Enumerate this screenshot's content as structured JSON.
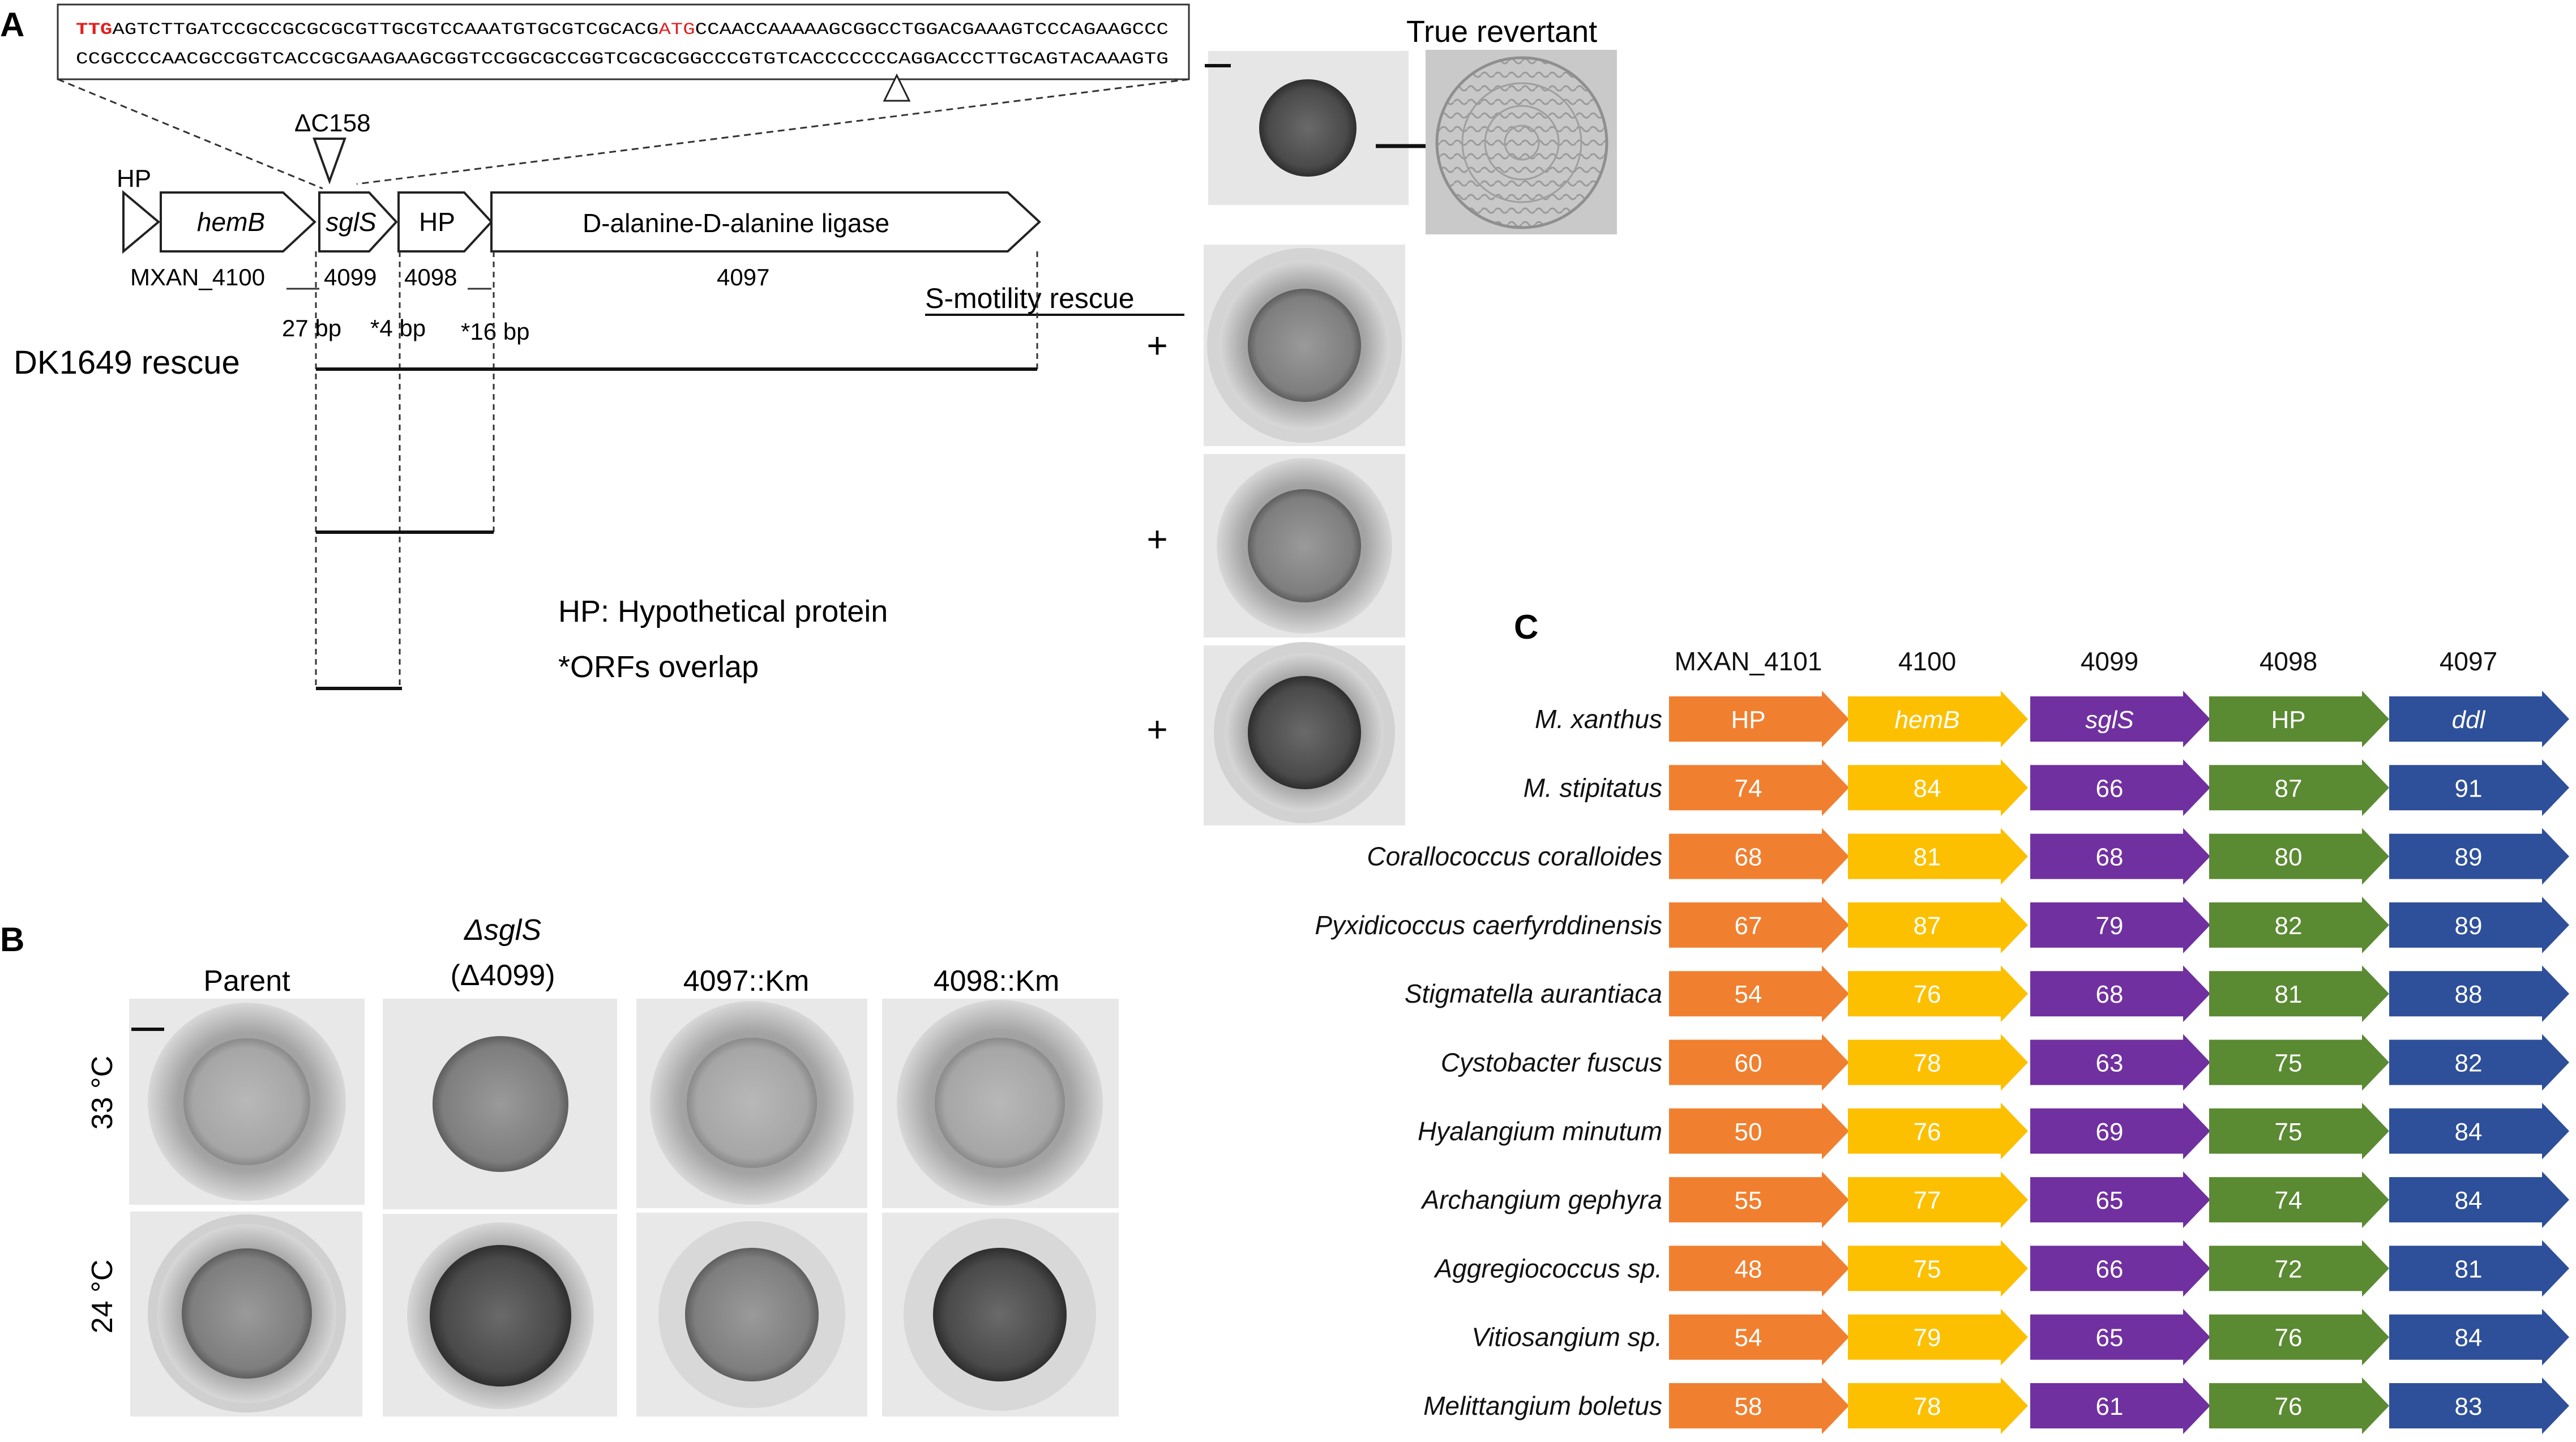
{
  "panel_a": {
    "letter": "A",
    "sequence": {
      "line1_start": "TTG",
      "line1_mid": "AGTCTTGATCCGCCGCGCGCGTTGCGTCCAAATGTGCGTCGCACG",
      "line1_atg": "ATG",
      "line1_end": "CCAACCAAAAAGCGGCCTGGACGAAAGTCCCAGAAGCCC",
      "line2": "CCGCCCCAACGCCGGTCACCGCGAAGAAGCGGTCCGGCGCCGGTCGCGCGGCCCGTGTCACCCCCCCAGGACCCTTGCAGTACAAAGTG"
    },
    "deletion_label": "ΔC158",
    "hp_top_label": "HP",
    "genes": [
      {
        "label": "hemB",
        "italic": true
      },
      {
        "label": "sglS",
        "italic": true
      },
      {
        "label": "HP",
        "italic": false
      },
      {
        "label": "D-alanine-D-alanine ligase",
        "italic": false
      }
    ],
    "gene_numbers": [
      "MXAN_4100",
      "4099",
      "4098",
      "4097"
    ],
    "spacers": [
      "27 bp",
      "*4 bp",
      "*16 bp"
    ],
    "smotility_label": "S-motility rescue",
    "dk_label": "DK1649 rescue",
    "plus_signs": [
      "+",
      "+",
      "+"
    ],
    "legend": [
      "HP: Hypothetical protein",
      "*ORFs overlap"
    ],
    "true_revertant": "True revertant"
  },
  "panel_b": {
    "letter": "B",
    "columns": [
      {
        "line1": "Parent",
        "line2": ""
      },
      {
        "line1": "ΔsglS",
        "line2": "(Δ4099)"
      },
      {
        "line1": "4097::Km",
        "line2": ""
      },
      {
        "line1": "4098::Km",
        "line2": ""
      }
    ],
    "rows": [
      "33 °C",
      "24 °C"
    ]
  },
  "panel_c": {
    "letter": "C",
    "column_headers": [
      "MXAN_4101",
      "4100",
      "4099",
      "4098",
      "4097"
    ],
    "column_colors": [
      "#f08030",
      "#fcc000",
      "#7030a0",
      "#5a8a32",
      "#2e4f99"
    ],
    "species": [
      {
        "name": "M. xanthus",
        "values": [
          "HP",
          "hemB",
          "sglS",
          "HP",
          "ddl"
        ]
      },
      {
        "name": "M. stipitatus",
        "values": [
          "74",
          "84",
          "66",
          "87",
          "91"
        ]
      },
      {
        "name": "Corallococcus coralloides",
        "values": [
          "68",
          "81",
          "68",
          "80",
          "89"
        ]
      },
      {
        "name": "Pyxidicoccus caerfyrddinensis",
        "values": [
          "67",
          "87",
          "79",
          "82",
          "89"
        ]
      },
      {
        "name": "Stigmatella aurantiaca",
        "values": [
          "54",
          "76",
          "68",
          "81",
          "88"
        ]
      },
      {
        "name": "Cystobacter fuscus",
        "values": [
          "60",
          "78",
          "63",
          "75",
          "82"
        ]
      },
      {
        "name": "Hyalangium minutum",
        "values": [
          "50",
          "76",
          "69",
          "75",
          "84"
        ]
      },
      {
        "name": "Archangium gephyra",
        "values": [
          "55",
          "77",
          "65",
          "74",
          "84"
        ]
      },
      {
        "name": "Aggregiococcus sp.",
        "values": [
          "48",
          "75",
          "66",
          "72",
          "81"
        ]
      },
      {
        "name": "Vitiosangium sp.",
        "values": [
          "54",
          "79",
          "65",
          "76",
          "84"
        ]
      },
      {
        "name": "Melittangium boletus",
        "values": [
          "58",
          "78",
          "61",
          "76",
          "83"
        ]
      }
    ]
  },
  "colors": {
    "red_codon": "#e02020",
    "plate_bg": "#e4e4e4",
    "colony_dark": "#3a3a3a"
  }
}
